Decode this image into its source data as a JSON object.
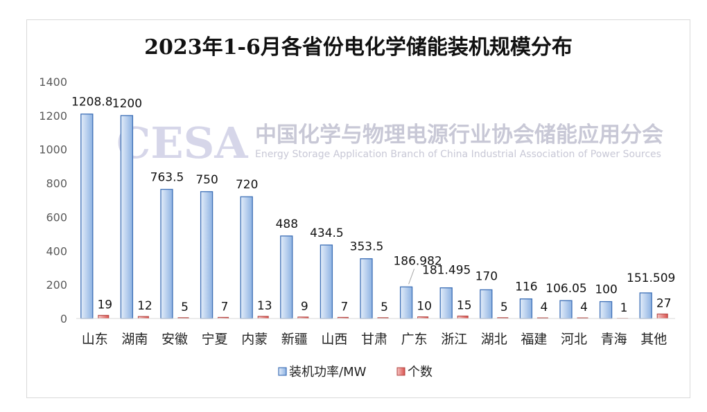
{
  "chart_data": {
    "type": "bar",
    "title": "2023年1-6月各省份电化学储能装机规模分布",
    "categories": [
      "山东",
      "湖南",
      "安徽",
      "宁夏",
      "内蒙",
      "新疆",
      "山西",
      "甘肃",
      "广东",
      "浙江",
      "湖北",
      "福建",
      "河北",
      "青海",
      "其他"
    ],
    "series": [
      {
        "name": "装机功率/MW",
        "values": [
          1208.8,
          1200,
          763.5,
          750,
          720,
          488,
          434.5,
          353.5,
          186.982,
          181.495,
          170,
          116,
          106.05,
          100,
          151.509
        ],
        "labels": [
          "1208.8",
          "1200",
          "763.5",
          "750",
          "720",
          "488",
          "434.5",
          "353.5",
          "186.982",
          "181.495",
          "170",
          "116",
          "106.05",
          "100",
          "151.509"
        ],
        "color": "#4a80c8"
      },
      {
        "name": "个数",
        "values": [
          19,
          12,
          5,
          7,
          13,
          9,
          7,
          5,
          10,
          15,
          5,
          4,
          4,
          1,
          27
        ],
        "labels": [
          "19",
          "12",
          "5",
          "7",
          "13",
          "9",
          "7",
          "5",
          "10",
          "15",
          "5",
          "4",
          "4",
          "1",
          "27"
        ],
        "color": "#c0504d"
      }
    ],
    "ylim": [
      0,
      1400
    ],
    "yticks": [
      0,
      200,
      400,
      600,
      800,
      1000,
      1200,
      1400
    ],
    "grid": false,
    "legend": "bottom",
    "watermark": {
      "logo": "CESA",
      "org_zh": "中国化学与物理电源行业协会储能应用分会",
      "org_en": "Energy Storage Application Branch of China Industrial Association of Power Sources"
    }
  }
}
